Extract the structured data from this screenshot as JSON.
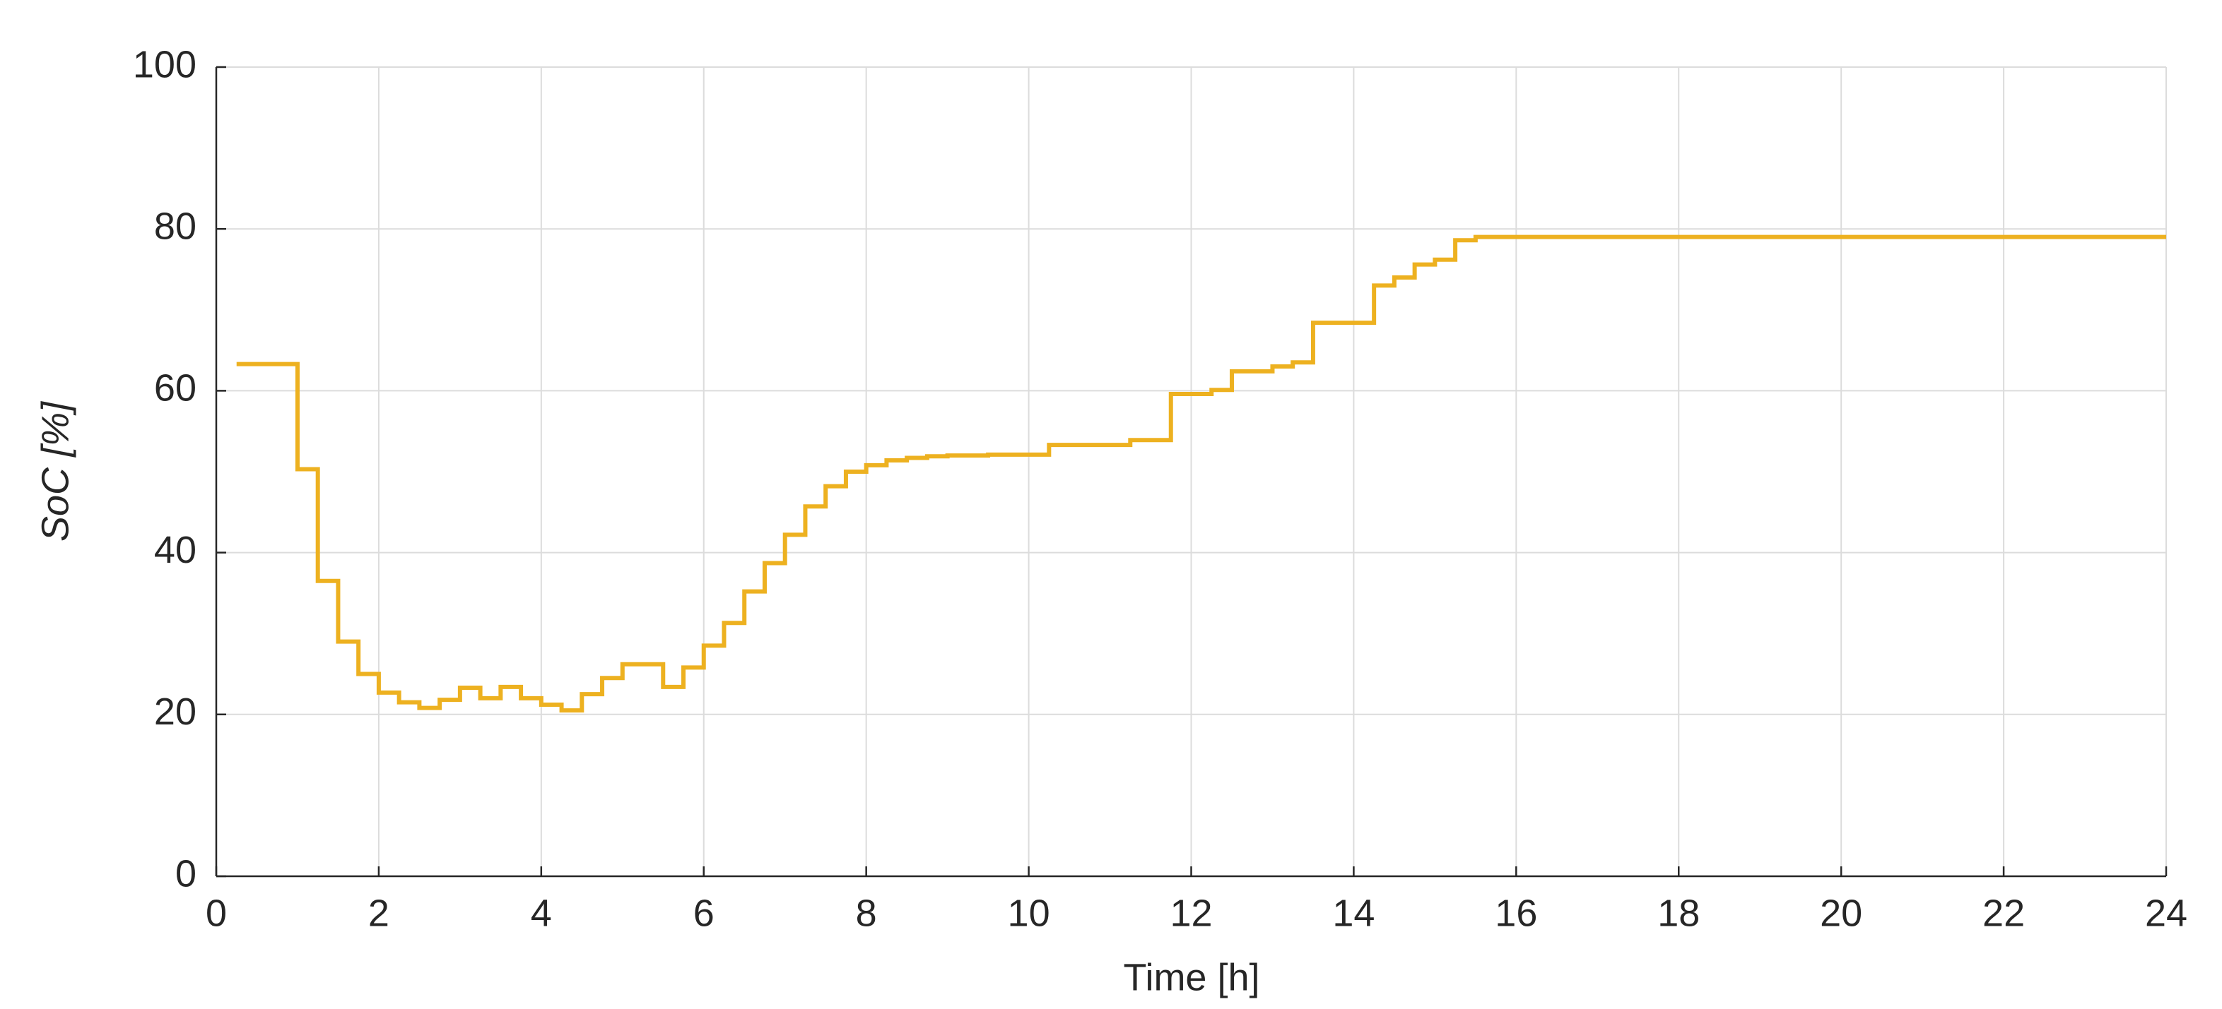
{
  "chart_data": {
    "type": "line",
    "step": "post",
    "x_label": "Time [h]",
    "y_label": "SoC [%]",
    "x": [
      0.25,
      1,
      1.25,
      1.5,
      1.75,
      2,
      2.25,
      2.5,
      2.75,
      3,
      3.25,
      3.5,
      3.75,
      4,
      4.25,
      4.5,
      4.75,
      5,
      5.5,
      5.75,
      6,
      6.25,
      6.5,
      6.75,
      7,
      7.25,
      7.5,
      7.75,
      8,
      8.25,
      8.5,
      8.75,
      9,
      9.5,
      10.25,
      11.25,
      11.75,
      12.25,
      12.5,
      13,
      13.25,
      13.5,
      14.25,
      14.5,
      14.75,
      15,
      15.25,
      15.5,
      24
    ],
    "values": [
      63.3,
      50.3,
      36.5,
      29,
      25,
      22.7,
      21.5,
      20.8,
      21.8,
      23.3,
      22,
      23.4,
      22,
      21.2,
      20.5,
      22.5,
      24.5,
      26.2,
      23.4,
      25.8,
      28.5,
      31.3,
      35.2,
      38.7,
      42.2,
      45.7,
      48.2,
      50,
      50.8,
      51.4,
      51.7,
      51.9,
      52,
      52.1,
      53.3,
      53.9,
      59.6,
      60.1,
      62.4,
      63,
      63.5,
      68.4,
      73,
      74,
      75.6,
      76.2,
      78.6,
      79,
      79
    ],
    "color": "#EDB120",
    "xlim": [
      0,
      24
    ],
    "xticks": [
      0,
      2,
      4,
      6,
      8,
      10,
      12,
      14,
      16,
      18,
      20,
      22,
      24
    ],
    "ylim": [
      0,
      100
    ],
    "yticks": [
      0,
      20,
      40,
      60,
      80,
      100
    ],
    "grid": true
  }
}
